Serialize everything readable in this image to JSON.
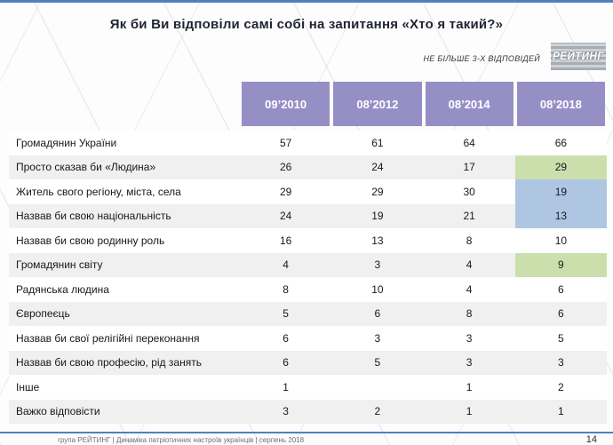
{
  "page": {
    "title": "Як би Ви відповіли самі собі на запитання «Хто я такий?»",
    "note": "НЕ БІЛЬШЕ 3-Х ВІДПОВІДЕЙ",
    "logo_text": "РЕЙТИНГ",
    "footer": "група РЕЙТИНГ | Динаміка патріотичних настроїв українців | серпень 2018",
    "page_number": "14"
  },
  "chart_data": {
    "type": "table",
    "title": "Як би Ви відповіли самі собі на запитання «Хто я такий?»",
    "columns": [
      "09’2010",
      "08’2012",
      "08’2014",
      "08’2018"
    ],
    "highlight_column_index": 3,
    "rows": [
      {
        "label": "Громадянин України",
        "values": [
          "57",
          "61",
          "64",
          "66"
        ],
        "highlight": null
      },
      {
        "label": "Просто сказав би «Людина»",
        "values": [
          "26",
          "24",
          "17",
          "29"
        ],
        "highlight": "green"
      },
      {
        "label": "Житель свого регіону, міста, села",
        "values": [
          "29",
          "29",
          "30",
          "19"
        ],
        "highlight": "blue"
      },
      {
        "label": "Назвав би свою національність",
        "values": [
          "24",
          "19",
          "21",
          "13"
        ],
        "highlight": "blue"
      },
      {
        "label": "Назвав би свою родинну роль",
        "values": [
          "16",
          "13",
          "8",
          "10"
        ],
        "highlight": null
      },
      {
        "label": "Громадянин світу",
        "values": [
          "4",
          "3",
          "4",
          "9"
        ],
        "highlight": "green"
      },
      {
        "label": "Радянська людина",
        "values": [
          "8",
          "10",
          "4",
          "6"
        ],
        "highlight": null
      },
      {
        "label": "Європеєць",
        "values": [
          "5",
          "6",
          "8",
          "6"
        ],
        "highlight": null
      },
      {
        "label": "Назвав би свої релігійні переконання",
        "values": [
          "6",
          "3",
          "3",
          "5"
        ],
        "highlight": null
      },
      {
        "label": "Назвав би свою професію, рід занять",
        "values": [
          "6",
          "5",
          "3",
          "3"
        ],
        "highlight": null
      },
      {
        "label": "Інше",
        "values": [
          "1",
          "",
          "1",
          "2"
        ],
        "highlight": null
      },
      {
        "label": "Важко відповісти",
        "values": [
          "3",
          "2",
          "1",
          "1"
        ],
        "highlight": null
      }
    ],
    "colors": {
      "header_bg": "#968fc6",
      "highlight_green": "#cbdfad",
      "highlight_blue": "#aec6e2",
      "row_alt": "#f0f0f1",
      "accent_line": "#4f81bd"
    },
    "legend_position": "none",
    "grid": false
  }
}
